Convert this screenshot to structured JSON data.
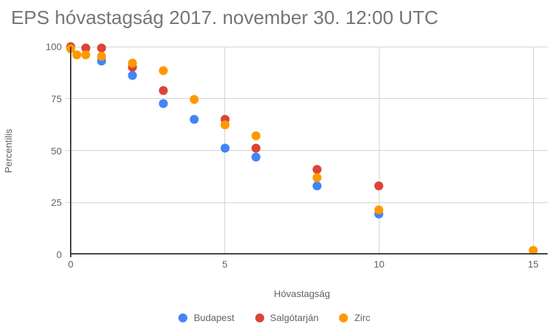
{
  "chart_data": {
    "type": "scatter",
    "title": "EPS hóvastagság 2017. november 30. 12:00 UTC",
    "xlabel": "Hóvastagság",
    "ylabel": "Percentilis",
    "xlim": [
      0,
      15
    ],
    "ylim": [
      0,
      100
    ],
    "x_ticks": [
      0,
      5,
      10,
      15
    ],
    "y_ticks": [
      0,
      25,
      50,
      75,
      100
    ],
    "grid": true,
    "legend_position": "bottom",
    "axis_color": "#3b3b3b",
    "grid_color": "#d2d2d2",
    "series": [
      {
        "name": "Budapest",
        "color": "#4285f4",
        "points": [
          [
            1,
            93
          ],
          [
            2,
            86
          ],
          [
            3,
            72.5
          ],
          [
            4,
            65
          ],
          [
            5,
            51
          ],
          [
            6,
            47
          ],
          [
            8,
            33
          ],
          [
            10,
            19.5
          ]
        ]
      },
      {
        "name": "Salgótarján",
        "color": "#db4437",
        "points": [
          [
            0,
            100
          ],
          [
            0.5,
            99.5
          ],
          [
            1,
            99.5
          ],
          [
            2,
            90
          ],
          [
            3,
            79
          ],
          [
            5,
            65
          ],
          [
            6,
            51
          ],
          [
            8,
            41
          ],
          [
            10,
            33
          ]
        ]
      },
      {
        "name": "Zirc",
        "color": "#ff9800",
        "points": [
          [
            0,
            99
          ],
          [
            0.2,
            96
          ],
          [
            0.5,
            96
          ],
          [
            1,
            95.5
          ],
          [
            2,
            92
          ],
          [
            3,
            88.5
          ],
          [
            4,
            74.5
          ],
          [
            5,
            62.5
          ],
          [
            6,
            57
          ],
          [
            8,
            37
          ],
          [
            10,
            21.5
          ],
          [
            15,
            2
          ]
        ]
      }
    ]
  }
}
